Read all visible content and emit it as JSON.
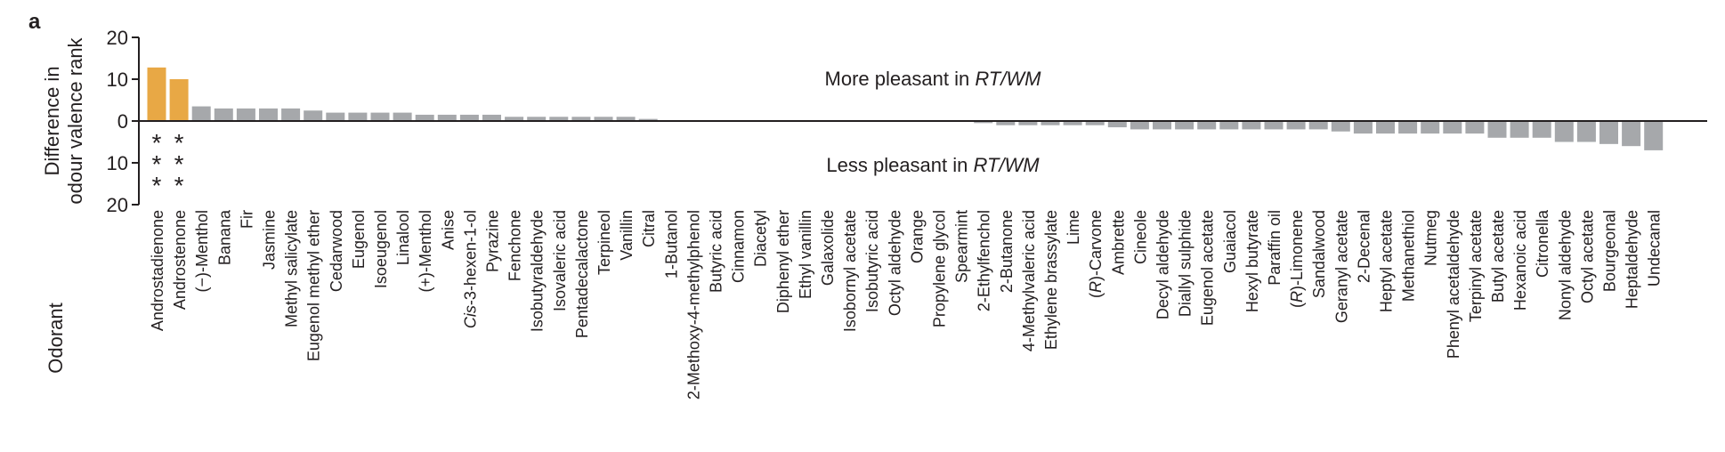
{
  "panel_label": "a",
  "chart_data": {
    "type": "bar",
    "ylabel": [
      "Difference in",
      "odour valence rank"
    ],
    "xlabel": "Odorant",
    "ylim": [
      -20,
      20
    ],
    "yticks": [
      20,
      10,
      0,
      10,
      20
    ],
    "ytick_values": [
      20,
      10,
      0,
      -10,
      -20
    ],
    "annotations": {
      "top": [
        "More pleasant in ",
        "RT/WM"
      ],
      "bottom": [
        "Less pleasant in ",
        "RT/WM"
      ]
    },
    "significance_marker": "*",
    "colors": {
      "highlight": "#e8a845",
      "default": "#a6a8ab",
      "axis": "#231f20"
    },
    "categories": [
      "Androstadienone",
      "Androstenone",
      "(−)-Menthol",
      "Banana",
      "Fir",
      "Jasmine",
      "Methyl salicylate",
      "Eugenol methyl ether",
      "Cedarwood",
      "Eugenol",
      "Isoeugenol",
      "Linalool",
      "(+)-Menthol",
      "Anise",
      "Cis-3-hexen-1-ol",
      "Pyrazine",
      "Fenchone",
      "Isobutyraldehyde",
      "Isovaleric acid",
      "Pentadecalactone",
      "Terpineol",
      "Vanillin",
      "Citral",
      "1-Butanol",
      "2-Methoxy-4-methylphenol",
      "Butyric acid",
      "Cinnamon",
      "Diacetyl",
      "Diphenyl ether",
      "Ethyl vanillin",
      "Galaxolide",
      "Isobornyl acetate",
      "Isobutyric acid",
      "Octyl aldehyde",
      "Orange",
      "Propylene glycol",
      "Spearmint",
      "2-Ethylfenchol",
      "2-Butanone",
      "4-Methylvaleric acid",
      "Ethylene brassylate",
      "Lime",
      "(R)-Carvone",
      "Ambrette",
      "Cineole",
      "Decyl aldehyde",
      "Diallyl sulphide",
      "Eugenol acetate",
      "Guaiacol",
      "Hexyl butyrate",
      "Paraffin oil",
      "(R)-Limonene",
      "Sandalwood",
      "Geranyl acetate",
      "2-Decenal",
      "Heptyl acetate",
      "Methanethiol",
      "Nutmeg",
      "Phenyl acetaldehyde",
      "Terpinyl acetate",
      "Butyl acetate",
      "Hexanoic acid",
      "Citronella",
      "Nonyl aldehyde",
      "Octyl acetate",
      "Bourgeonal",
      "Heptaldehyde",
      "Undecanal"
    ],
    "values": [
      12.8,
      10.0,
      3.5,
      3.0,
      3.0,
      3.0,
      3.0,
      2.5,
      2.0,
      2.0,
      2.0,
      2.0,
      1.5,
      1.5,
      1.5,
      1.5,
      1.0,
      1.0,
      1.0,
      1.0,
      1.0,
      1.0,
      0.5,
      0,
      0,
      0,
      0,
      0,
      0,
      0,
      0,
      0,
      0,
      0,
      0,
      0,
      0,
      -0.5,
      -1.0,
      -1.0,
      -1.0,
      -1.0,
      -1.0,
      -1.5,
      -2.0,
      -2.0,
      -2.0,
      -2.0,
      -2.0,
      -2.0,
      -2.0,
      -2.0,
      -2.0,
      -2.5,
      -3.0,
      -3.0,
      -3.0,
      -3.0,
      -3.0,
      -3.0,
      -4.0,
      -4.0,
      -4.0,
      -5.0,
      -5.0,
      -5.5,
      -6.0,
      -7.0
    ],
    "highlighted": [
      0,
      1
    ],
    "significance_stars": [
      3,
      3
    ]
  }
}
